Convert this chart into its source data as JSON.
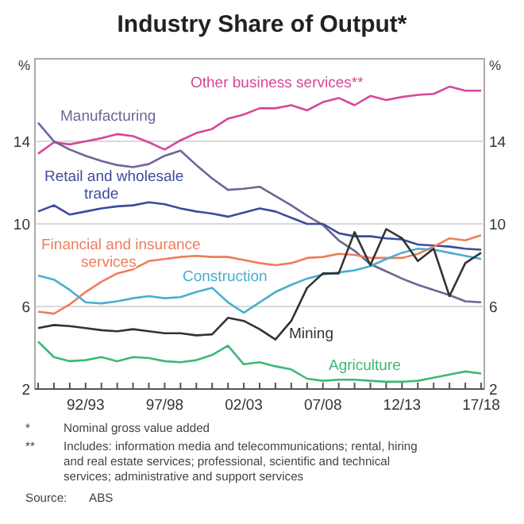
{
  "chart_data": {
    "type": "line",
    "title": "Industry Share of Output*",
    "ylabel": "%",
    "y2label": "%",
    "categories": [
      null,
      null,
      null,
      "92/93",
      null,
      null,
      null,
      null,
      "97/98",
      null,
      null,
      null,
      null,
      "02/03",
      null,
      null,
      null,
      null,
      "07/08",
      null,
      null,
      null,
      null,
      "12/13",
      null,
      null,
      null,
      null,
      "17/18"
    ],
    "ylim": [
      2,
      18
    ],
    "yticks": [
      2,
      6,
      10,
      14
    ],
    "y2lim": [
      2,
      18
    ],
    "y2ticks": [
      2,
      6,
      10,
      14
    ],
    "grid": "y",
    "line_style": "solid",
    "marker": "none",
    "series": [
      {
        "name": "Other business services**",
        "color": "#d6479a",
        "values": [
          13.4,
          13.95,
          13.85,
          14.0,
          14.15,
          14.35,
          14.25,
          13.95,
          13.6,
          14.05,
          14.4,
          14.6,
          15.1,
          15.3,
          15.6,
          15.6,
          15.75,
          15.5,
          15.9,
          16.1,
          15.75,
          16.2,
          16.0,
          16.15,
          16.25,
          16.3,
          16.65,
          16.45,
          16.45
        ]
      },
      {
        "name": "Manufacturing",
        "color": "#6e6596",
        "values": [
          14.9,
          14.0,
          13.6,
          13.3,
          13.05,
          12.85,
          12.75,
          12.9,
          13.3,
          13.55,
          12.85,
          12.2,
          11.65,
          11.7,
          11.8,
          11.35,
          10.9,
          10.4,
          9.95,
          9.2,
          8.7,
          8.05,
          7.7,
          7.35,
          7.05,
          6.8,
          6.55,
          6.25,
          6.2
        ]
      },
      {
        "name": "Retail and wholesale trade",
        "color": "#3d4b9c",
        "values": [
          10.6,
          10.9,
          10.45,
          10.6,
          10.75,
          10.85,
          10.9,
          11.05,
          10.95,
          10.75,
          10.6,
          10.5,
          10.35,
          10.55,
          10.75,
          10.6,
          10.3,
          10.0,
          10.0,
          9.55,
          9.4,
          9.4,
          9.3,
          9.25,
          9.0,
          8.95,
          8.9,
          8.8,
          8.75
        ]
      },
      {
        "name": "Financial and insurance services",
        "color": "#ee7d5c",
        "values": [
          5.75,
          5.65,
          6.1,
          6.7,
          7.2,
          7.6,
          7.8,
          8.2,
          8.3,
          8.4,
          8.45,
          8.4,
          8.4,
          8.25,
          8.1,
          8.0,
          8.1,
          8.35,
          8.4,
          8.55,
          8.5,
          8.35,
          8.35,
          8.35,
          8.55,
          8.9,
          9.3,
          9.2,
          9.45
        ]
      },
      {
        "name": "Construction",
        "color": "#4aaed0",
        "values": [
          7.5,
          7.3,
          6.8,
          6.2,
          6.15,
          6.25,
          6.4,
          6.5,
          6.4,
          6.45,
          6.7,
          6.9,
          6.2,
          5.7,
          6.2,
          6.7,
          7.05,
          7.35,
          7.55,
          7.65,
          7.75,
          7.95,
          8.3,
          8.6,
          8.8,
          8.75,
          8.6,
          8.45,
          8.3
        ]
      },
      {
        "name": "Mining",
        "color": "#333333",
        "values": [
          4.95,
          5.1,
          5.05,
          4.95,
          4.85,
          4.8,
          4.9,
          4.8,
          4.7,
          4.7,
          4.6,
          4.65,
          5.45,
          5.3,
          4.9,
          4.4,
          5.3,
          6.9,
          7.6,
          7.6,
          9.6,
          8.0,
          9.75,
          9.3,
          8.2,
          8.8,
          6.5,
          8.1,
          8.6
        ]
      },
      {
        "name": "Agriculture",
        "color": "#3cb878",
        "values": [
          4.3,
          3.55,
          3.35,
          3.4,
          3.55,
          3.35,
          3.55,
          3.5,
          3.35,
          3.3,
          3.4,
          3.65,
          4.1,
          3.2,
          3.3,
          3.1,
          2.95,
          2.5,
          2.4,
          2.45,
          2.45,
          2.4,
          2.35,
          2.35,
          2.4,
          2.55,
          2.7,
          2.85,
          2.75
        ]
      }
    ],
    "annotations": [
      "*\tNominal gross value added",
      "**\tIncludes: information media and telecommunications; rental, hiring and real estate services; professional, scientific and technical services; administrative and support services",
      "Source:\tABS"
    ]
  }
}
